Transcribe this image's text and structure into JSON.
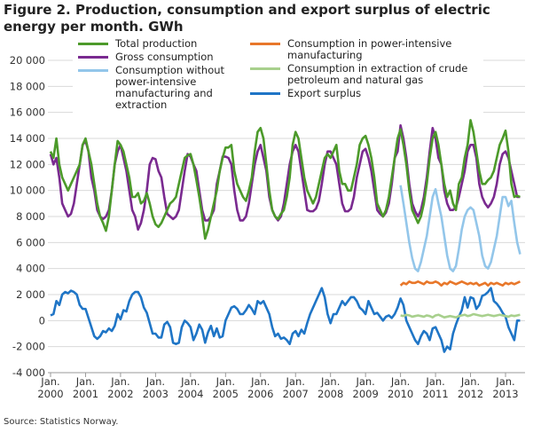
{
  "chart_data": {
    "type": "line",
    "title": "Figure 2. Production, consumption and export surplus of electric energy per month. GWh",
    "source": "Source: Statistics Norway.",
    "legend": "top",
    "grid": true,
    "categories": [
      "Jan. 2000",
      null,
      null,
      null,
      null,
      null,
      null,
      null,
      null,
      null,
      null,
      null,
      "Jan. 2001",
      null,
      null,
      null,
      null,
      null,
      null,
      null,
      null,
      null,
      null,
      null,
      "Jan. 2002",
      null,
      null,
      null,
      null,
      null,
      null,
      null,
      null,
      null,
      null,
      null,
      "Jan. 2003",
      null,
      null,
      null,
      null,
      null,
      null,
      null,
      null,
      null,
      null,
      null,
      "Jan. 2004",
      null,
      null,
      null,
      null,
      null,
      null,
      null,
      null,
      null,
      null,
      null,
      "Jan. 2005",
      null,
      null,
      null,
      null,
      null,
      null,
      null,
      null,
      null,
      null,
      null,
      "Jan. 2006",
      null,
      null,
      null,
      null,
      null,
      null,
      null,
      null,
      null,
      null,
      null,
      "Jan. 2007",
      null,
      null,
      null,
      null,
      null,
      null,
      null,
      null,
      null,
      null,
      null,
      "Jan. 2008",
      null,
      null,
      null,
      null,
      null,
      null,
      null,
      null,
      null,
      null,
      null,
      "Jan. 2009",
      null,
      null,
      null,
      null,
      null,
      null,
      null,
      null,
      null,
      null,
      null,
      "Jan. 2010",
      null,
      null,
      null,
      null,
      null,
      null,
      null,
      null,
      null,
      null,
      null,
      "Jan. 2011",
      null,
      null,
      null,
      null,
      null,
      null,
      null,
      null,
      null,
      null,
      null,
      "Jan. 2012",
      null,
      null,
      null,
      null,
      null,
      null,
      null,
      null,
      null,
      null,
      null,
      "Jan. 2013",
      null,
      null,
      null,
      null,
      null
    ],
    "ylim": [
      -4000,
      20000
    ],
    "yticks": [
      {
        "value": -4000,
        "label": "-4 000"
      },
      {
        "value": -2000,
        "label": "-2 000"
      },
      0,
      {
        "value": 2000,
        "label": "2 000"
      },
      {
        "value": 4000,
        "label": "4 000"
      },
      {
        "value": 6000,
        "label": "6 000"
      },
      {
        "value": 8000,
        "label": "8 000"
      },
      {
        "value": 10000,
        "label": "10 000"
      },
      {
        "value": 12000,
        "label": "12 000"
      },
      {
        "value": 14000,
        "label": "14 000"
      },
      {
        "value": 16000,
        "label": "16 000"
      },
      {
        "value": 18000,
        "label": "18 000"
      },
      {
        "value": 20000,
        "label": "20 000"
      }
    ],
    "series": [
      {
        "name": "Total production",
        "color": "#4c9a2a",
        "values": [
          13000,
          12500,
          14000,
          12000,
          11000,
          10500,
          10000,
          10500,
          11000,
          11500,
          12000,
          13500,
          14000,
          13000,
          12000,
          10500,
          9000,
          8000,
          7500,
          6900,
          8000,
          10000,
          12000,
          13800,
          13500,
          13000,
          12000,
          11000,
          9500,
          9500,
          9800,
          9000,
          9200,
          9800,
          9000,
          8000,
          7400,
          7200,
          7500,
          8000,
          8500,
          9000,
          9200,
          9500,
          10500,
          11500,
          12500,
          12700,
          12800,
          12000,
          10800,
          9500,
          8000,
          6300,
          7000,
          8000,
          9000,
          10000,
          11500,
          12500,
          13300,
          13300,
          13500,
          11500,
          10500,
          10000,
          9500,
          9200,
          10000,
          11000,
          13000,
          14500,
          14800,
          14000,
          12000,
          10000,
          8500,
          8000,
          7800,
          8200,
          8500,
          9500,
          11000,
          13500,
          14500,
          14000,
          12500,
          11000,
          10000,
          9500,
          9000,
          9500,
          10500,
          11500,
          12500,
          12800,
          12500,
          13000,
          13500,
          11500,
          10500,
          10500,
          10000,
          10000,
          11000,
          12000,
          13500,
          14000,
          14200,
          13500,
          12500,
          11000,
          9000,
          8500,
          8000,
          8500,
          9500,
          11000,
          12500,
          14000,
          14700,
          13500,
          12000,
          10000,
          8500,
          8000,
          7500,
          8000,
          9000,
          10500,
          12500,
          14000,
          14500,
          13500,
          12000,
          10500,
          9500,
          10000,
          9000,
          8500,
          10500,
          11000,
          12500,
          13500,
          15400,
          14500,
          13000,
          11500,
          10500,
          10500,
          10800,
          11000,
          11500,
          12500,
          13500,
          14000,
          14600,
          13000,
          10500,
          9500,
          9600,
          9500
        ]
      },
      {
        "name": "Gross consumption",
        "color": "#7a2a90",
        "values": [
          12800,
          12000,
          12500,
          11000,
          9000,
          8500,
          8000,
          8200,
          9000,
          10500,
          12000,
          13500,
          13800,
          13000,
          11000,
          10000,
          8500,
          8000,
          7800,
          8000,
          8500,
          10000,
          12000,
          13000,
          13500,
          12500,
          11500,
          10000,
          8500,
          8000,
          7000,
          7500,
          8500,
          10000,
          12000,
          12500,
          12400,
          11500,
          11000,
          9500,
          8200,
          8000,
          7800,
          8000,
          8500,
          10000,
          11500,
          12800,
          12600,
          12000,
          11500,
          10000,
          8500,
          7700,
          7700,
          8000,
          8500,
          10500,
          11500,
          12600,
          12600,
          12500,
          12000,
          10000,
          8500,
          7700,
          7700,
          8000,
          9000,
          10500,
          12000,
          13000,
          13500,
          12500,
          11500,
          9500,
          8500,
          8000,
          7700,
          8000,
          9000,
          10500,
          12000,
          13000,
          13500,
          13000,
          11500,
          10000,
          8500,
          8400,
          8400,
          8600,
          9200,
          10500,
          12000,
          13000,
          13000,
          12500,
          12000,
          10500,
          9000,
          8400,
          8400,
          8600,
          9500,
          11000,
          12000,
          13000,
          13200,
          12500,
          11500,
          10000,
          8500,
          8200,
          8000,
          8300,
          9000,
          10500,
          12500,
          13000,
          15000,
          14000,
          12500,
          10500,
          9000,
          8400,
          8000,
          8500,
          9500,
          11000,
          13000,
          14800,
          14000,
          12500,
          12000,
          10000,
          9000,
          8500,
          8500,
          8700,
          9500,
          10500,
          11500,
          13000,
          13500,
          13500,
          12500,
          10500,
          9500,
          9000,
          8700,
          9000,
          9500,
          10500,
          12000,
          12800,
          13000,
          12500,
          11500,
          10500,
          9500,
          9500
        ]
      },
      {
        "name": "Consumption without power-intensive manufacturing and extraction",
        "color": "#93c6ea",
        "values": [
          null,
          null,
          null,
          null,
          null,
          null,
          null,
          null,
          null,
          null,
          null,
          null,
          null,
          null,
          null,
          null,
          null,
          null,
          null,
          null,
          null,
          null,
          null,
          null,
          null,
          null,
          null,
          null,
          null,
          null,
          null,
          null,
          null,
          null,
          null,
          null,
          null,
          null,
          null,
          null,
          null,
          null,
          null,
          null,
          null,
          null,
          null,
          null,
          null,
          null,
          null,
          null,
          null,
          null,
          null,
          null,
          null,
          null,
          null,
          null,
          null,
          null,
          null,
          null,
          null,
          null,
          null,
          null,
          null,
          null,
          null,
          null,
          null,
          null,
          null,
          null,
          null,
          null,
          null,
          null,
          null,
          null,
          null,
          null,
          null,
          null,
          null,
          null,
          null,
          null,
          null,
          null,
          null,
          null,
          null,
          null,
          null,
          null,
          null,
          null,
          null,
          null,
          null,
          null,
          null,
          null,
          null,
          null,
          null,
          null,
          null,
          null,
          null,
          null,
          null,
          null,
          null,
          null,
          null,
          null,
          10400,
          9000,
          7500,
          6000,
          4800,
          4000,
          3800,
          4500,
          5500,
          6500,
          8000,
          9500,
          10100,
          9000,
          8000,
          6500,
          5000,
          4000,
          3800,
          4200,
          5500,
          7000,
          8000,
          8500,
          8700,
          8500,
          7500,
          6500,
          5000,
          4200,
          4000,
          4500,
          5500,
          6500,
          8000,
          9500,
          9500,
          8800,
          9200,
          7500,
          6000,
          5100
        ]
      },
      {
        "name": "Consumption in power-intensive manufacturing",
        "color": "#e8772a",
        "values": [
          null,
          null,
          null,
          null,
          null,
          null,
          null,
          null,
          null,
          null,
          null,
          null,
          null,
          null,
          null,
          null,
          null,
          null,
          null,
          null,
          null,
          null,
          null,
          null,
          null,
          null,
          null,
          null,
          null,
          null,
          null,
          null,
          null,
          null,
          null,
          null,
          null,
          null,
          null,
          null,
          null,
          null,
          null,
          null,
          null,
          null,
          null,
          null,
          null,
          null,
          null,
          null,
          null,
          null,
          null,
          null,
          null,
          null,
          null,
          null,
          null,
          null,
          null,
          null,
          null,
          null,
          null,
          null,
          null,
          null,
          null,
          null,
          null,
          null,
          null,
          null,
          null,
          null,
          null,
          null,
          null,
          null,
          null,
          null,
          null,
          null,
          null,
          null,
          null,
          null,
          null,
          null,
          null,
          null,
          null,
          null,
          null,
          null,
          null,
          null,
          null,
          null,
          null,
          null,
          null,
          null,
          null,
          null,
          null,
          null,
          null,
          null,
          null,
          null,
          null,
          null,
          null,
          null,
          null,
          null,
          2700,
          2900,
          2800,
          3000,
          2900,
          2900,
          3000,
          2900,
          2800,
          3000,
          2900,
          2900,
          3000,
          2900,
          2700,
          2900,
          2800,
          3000,
          2900,
          2800,
          2900,
          3000,
          2900,
          2800,
          2900,
          2800,
          2900,
          2700,
          2800,
          2900,
          2700,
          2900,
          2800,
          2900,
          2800,
          2700,
          2900,
          2800,
          2900,
          2800,
          2900,
          3000
        ]
      },
      {
        "name": "Consumption in extraction of crude petroleum and natural gas",
        "color": "#a8d08d",
        "values": [
          null,
          null,
          null,
          null,
          null,
          null,
          null,
          null,
          null,
          null,
          null,
          null,
          null,
          null,
          null,
          null,
          null,
          null,
          null,
          null,
          null,
          null,
          null,
          null,
          null,
          null,
          null,
          null,
          null,
          null,
          null,
          null,
          null,
          null,
          null,
          null,
          null,
          null,
          null,
          null,
          null,
          null,
          null,
          null,
          null,
          null,
          null,
          null,
          null,
          null,
          null,
          null,
          null,
          null,
          null,
          null,
          null,
          null,
          null,
          null,
          null,
          null,
          null,
          null,
          null,
          null,
          null,
          null,
          null,
          null,
          null,
          null,
          null,
          null,
          null,
          null,
          null,
          null,
          null,
          null,
          null,
          null,
          null,
          null,
          null,
          null,
          null,
          null,
          null,
          null,
          null,
          null,
          null,
          null,
          null,
          null,
          null,
          null,
          null,
          null,
          null,
          null,
          null,
          null,
          null,
          null,
          null,
          null,
          null,
          null,
          null,
          null,
          null,
          null,
          null,
          null,
          null,
          null,
          null,
          null,
          400,
          350,
          450,
          400,
          300,
          350,
          400,
          350,
          300,
          400,
          350,
          250,
          400,
          450,
          350,
          250,
          300,
          350,
          300,
          250,
          350,
          400,
          450,
          350,
          400,
          500,
          450,
          400,
          350,
          400,
          450,
          400,
          350,
          400,
          450,
          400,
          350,
          300,
          400,
          350,
          400,
          450
        ]
      },
      {
        "name": "Export surplus",
        "color": "#1f75c6",
        "values": [
          400,
          500,
          1500,
          1200,
          2000,
          2200,
          2100,
          2300,
          2200,
          2000,
          1200,
          900,
          900,
          200,
          -500,
          -1200,
          -1400,
          -1200,
          -800,
          -900,
          -600,
          -800,
          -400,
          500,
          100,
          800,
          700,
          1500,
          2000,
          2200,
          2200,
          1800,
          1000,
          600,
          -200,
          -1000,
          -1000,
          -1300,
          -1300,
          -300,
          -100,
          -500,
          -1700,
          -1800,
          -1700,
          -500,
          0,
          -200,
          -500,
          -1500,
          -1000,
          -300,
          -700,
          -1700,
          -900,
          -400,
          -1200,
          -600,
          -1300,
          -1200,
          0,
          500,
          1000,
          1100,
          900,
          500,
          500,
          800,
          1200,
          900,
          500,
          1500,
          1300,
          1500,
          1000,
          500,
          -500,
          -1200,
          -1000,
          -1400,
          -1300,
          -1500,
          -1800,
          -1000,
          -800,
          -1200,
          -700,
          -1000,
          -200,
          500,
          1000,
          1500,
          2000,
          2500,
          1800,
          500,
          -200,
          500,
          500,
          1000,
          1500,
          1200,
          1500,
          1800,
          1800,
          1500,
          1000,
          800,
          500,
          1500,
          1000,
          500,
          600,
          300,
          0,
          300,
          400,
          200,
          500,
          1000,
          1700,
          1200,
          0,
          -500,
          -1000,
          -1500,
          -1800,
          -1200,
          -800,
          -1000,
          -1500,
          -600,
          -500,
          -1000,
          -1500,
          -2400,
          -2000,
          -2200,
          -1000,
          -300,
          300,
          800,
          1800,
          1000,
          1800,
          1700,
          900,
          1200,
          1900,
          2000,
          2200,
          2500,
          1500,
          1300,
          1000,
          600,
          300,
          -500,
          -1000,
          -1500,
          0,
          0
        ]
      }
    ]
  }
}
